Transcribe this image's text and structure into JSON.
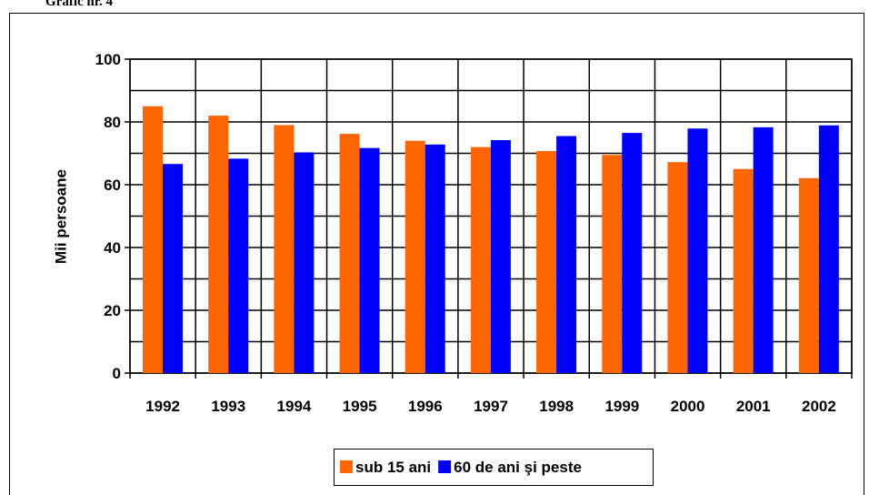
{
  "chart_data": {
    "type": "bar",
    "title": "Grafic nr. 4",
    "y_label": "Mii persoane",
    "categories": [
      "1992",
      "1993",
      "1994",
      "1995",
      "1996",
      "1997",
      "1998",
      "1999",
      "2000",
      "2001",
      "2002"
    ],
    "series": [
      {
        "name": "sub 15 ani",
        "color": "#ff6600",
        "values": [
          85,
          82,
          79,
          76.2,
          74,
          72,
          70.7,
          69.5,
          67.2,
          65,
          62.1
        ]
      },
      {
        "name": "60 de ani şi peste",
        "color": "#0000ff",
        "values": [
          66.6,
          68.3,
          70.3,
          71.7,
          72.8,
          74.2,
          75.5,
          76.5,
          77.9,
          78.3,
          78.9
        ]
      }
    ],
    "ylim": [
      0,
      100
    ],
    "yticks": [
      0,
      20,
      40,
      60,
      80,
      100
    ],
    "minor_yticks": [
      10,
      30,
      50,
      70,
      90
    ],
    "grid": true,
    "legend": "bottom"
  }
}
